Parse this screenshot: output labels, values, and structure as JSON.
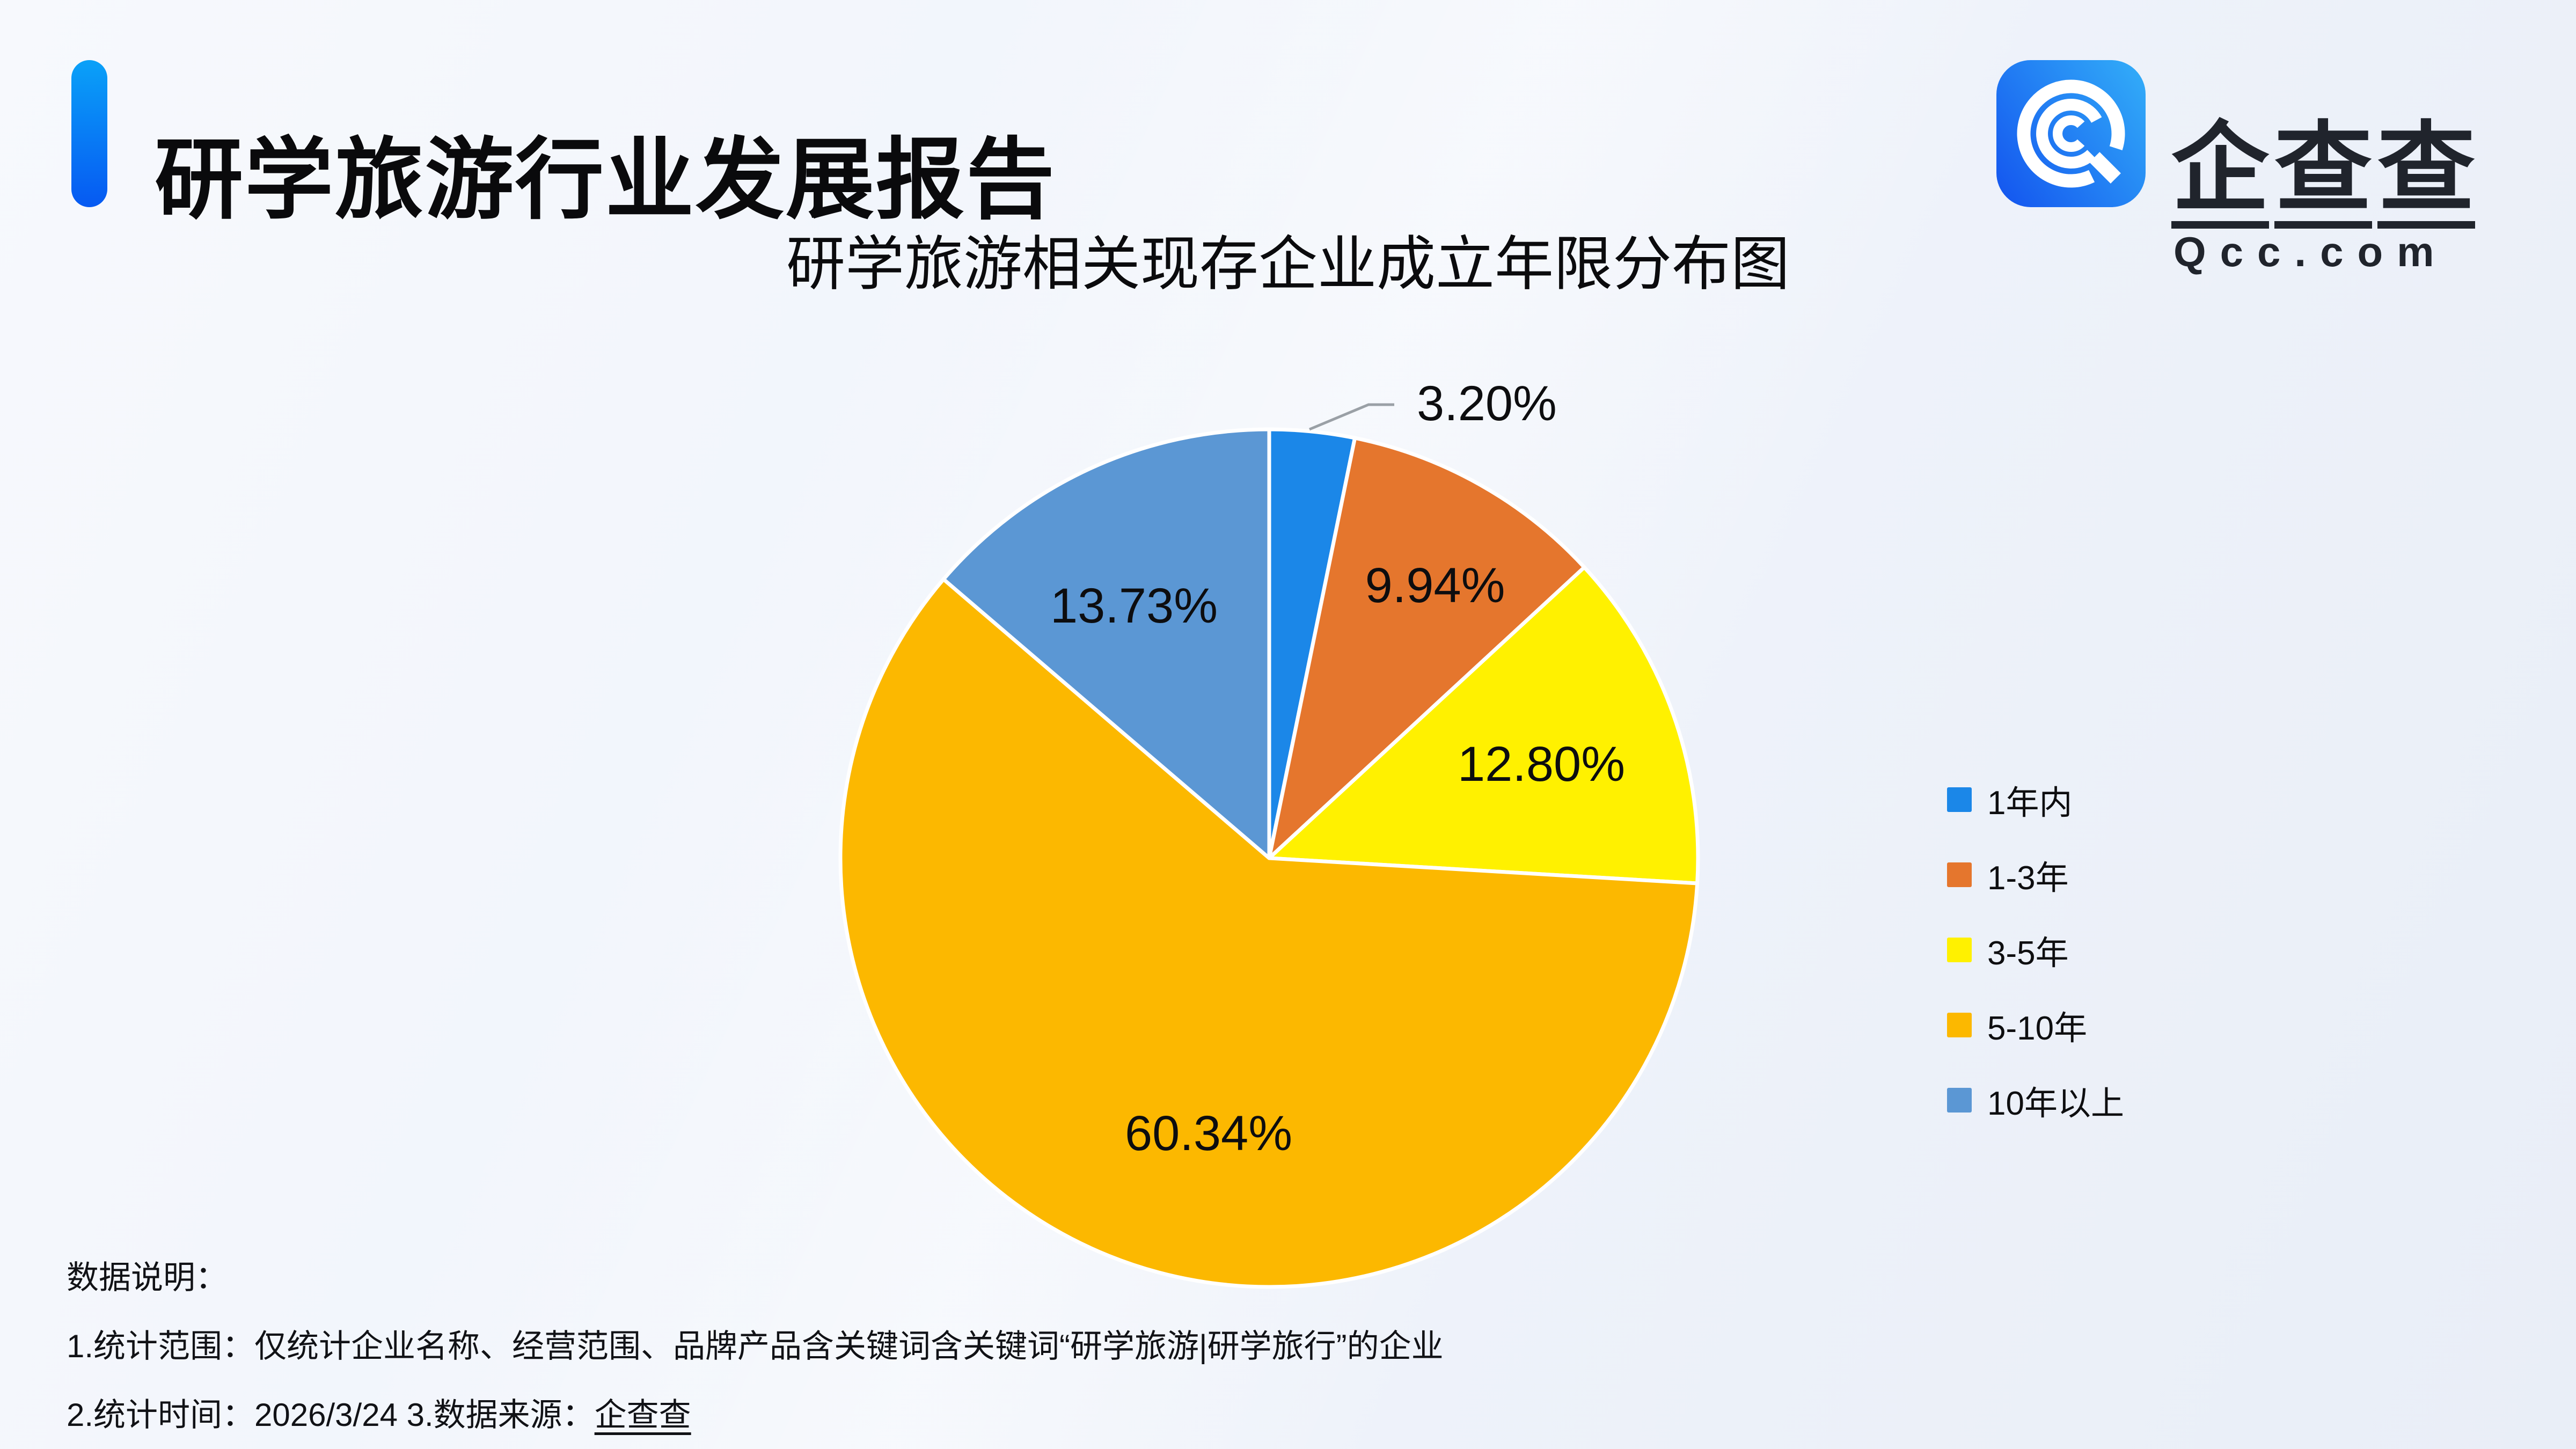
{
  "header": {
    "title": "研学旅游行业发展报告",
    "accent_color": "#0AA1F8",
    "logo": {
      "name": "企查查",
      "chars": [
        "企",
        "查",
        "查"
      ],
      "domain": "Qcc.com",
      "icon": "qcc-magnifier-icon",
      "icon_gradient": [
        "#1559EF",
        "#31A9F8"
      ],
      "text_color": "#20242C"
    }
  },
  "chart_data": {
    "type": "pie",
    "title": "研学旅游相关现存企业成立年限分布图",
    "legend_position": "right",
    "start_angle": "top",
    "direction": "clockwise",
    "value_unit": "%",
    "categories": [
      "1年内",
      "1-3年",
      "3-5年",
      "5-10年",
      "10年以上"
    ],
    "values": [
      3.2,
      9.94,
      12.8,
      60.34,
      13.73
    ],
    "series": [
      {
        "label": "1年内",
        "value": 3.2,
        "display": "3.20%",
        "color": "#1B87E8",
        "label_placement": "outside"
      },
      {
        "label": "1-3年",
        "value": 9.94,
        "display": "9.94%",
        "color": "#E5762D",
        "label_placement": "inside"
      },
      {
        "label": "3-5年",
        "value": 12.8,
        "display": "12.80%",
        "color": "#FFF100",
        "label_placement": "inside"
      },
      {
        "label": "5-10年",
        "value": 60.34,
        "display": "60.34%",
        "color": "#FCB800",
        "label_placement": "inside"
      },
      {
        "label": "10年以上",
        "value": 13.73,
        "display": "13.73%",
        "color": "#5B97D4",
        "label_placement": "inside"
      }
    ]
  },
  "footnotes": {
    "heading": "数据说明：",
    "line1": "1.统计范围：仅统计企业名称、经营范围、品牌产品含关键词含关键词“研学旅游|研学旅行”的企业",
    "line2_prefix": "2.统计时间：2026/3/24  3.数据来源：",
    "line2_source": "企查查"
  },
  "colors": {
    "background_start": "#F7F9FD",
    "background_end": "#E9EEF7",
    "slice_divider": "#FFFFFF",
    "leader_line": "#9AA0A6",
    "label_text": "#0D0D0F"
  }
}
